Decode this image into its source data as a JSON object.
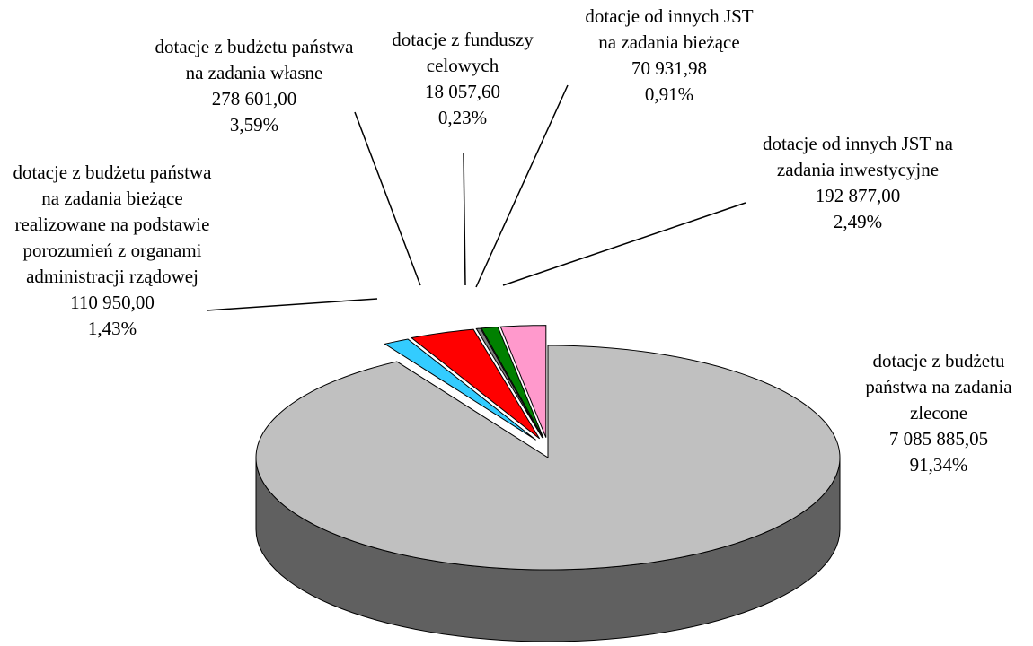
{
  "chart_data": {
    "type": "pie",
    "categories": [
      "dotacje z budżetu państwa na zadania zlecone",
      "dotacje z budżetu państwa na zadania bieżące realizowane na podstawie porozumień z organami administracji rządowej",
      "dotacje z budżetu państwa na zadania własne",
      "dotacje z funduszy celowych",
      "dotacje od innych JST na zadania bieżące",
      "dotacje od innych JST na zadania inwestycyjne"
    ],
    "values": [
      7085885.05,
      110950.0,
      278601.0,
      18057.6,
      70931.98,
      192877.0
    ],
    "value_labels": [
      "7 085 885,05",
      "110 950,00",
      "278 601,00",
      "18 057,60",
      "70 931,98",
      "192 877,00"
    ],
    "percents": [
      91.34,
      1.43,
      3.59,
      0.23,
      0.91,
      2.49
    ],
    "percent_labels": [
      "91,34%",
      "1,43%",
      "3,59%",
      "0,23%",
      "0,91%",
      "2,49%"
    ],
    "colors": [
      "#c0c0c0",
      "#33ccff",
      "#ff0000",
      "#808080",
      "#008000",
      "#ff99cc"
    ],
    "side_colors": [
      "#606060",
      "#006680",
      "#800000",
      "#404040",
      "#004000",
      "#996677"
    ]
  }
}
